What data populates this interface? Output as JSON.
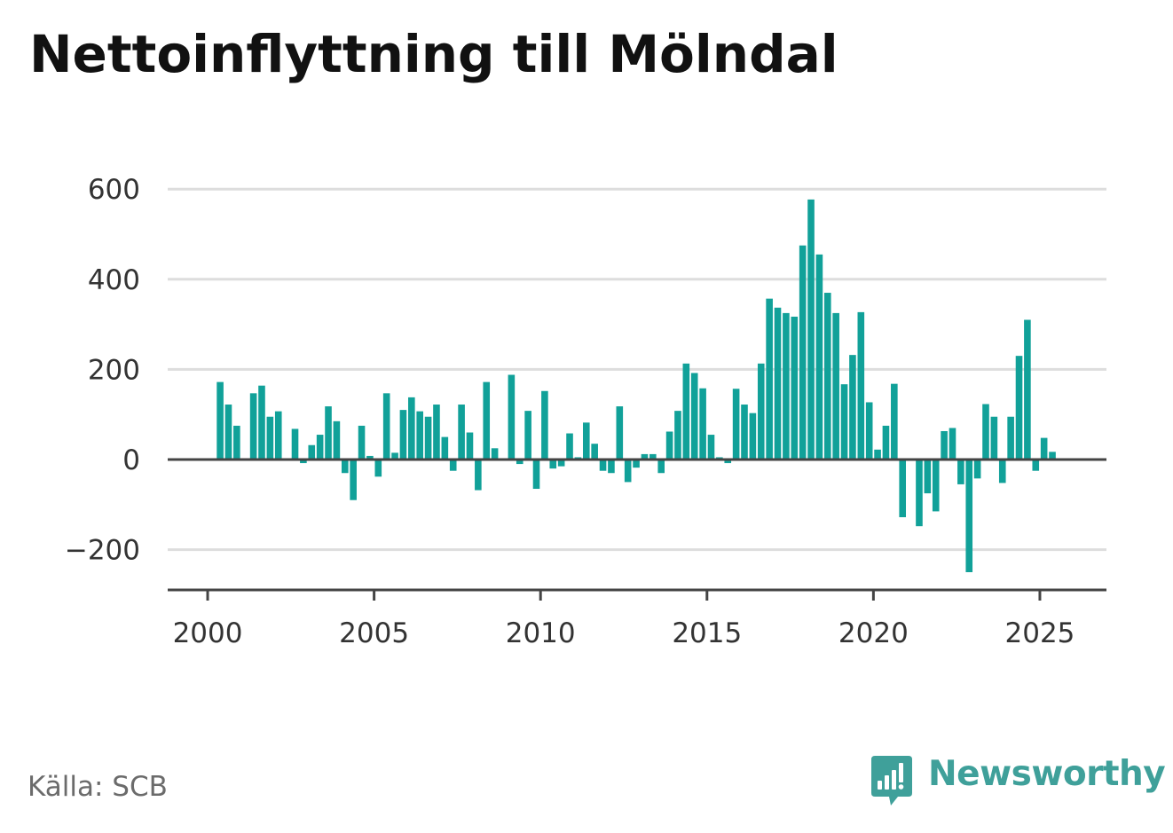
{
  "title": "Nettoinflyttning till Mölndal",
  "source": "Källa: SCB",
  "brand": {
    "name": "Newsworthy",
    "icon": "newsworthy-logo-icon",
    "color": "#3fa09a"
  },
  "chart_data": {
    "type": "bar",
    "bar_color": "#11a199",
    "axis_color": "#444444",
    "grid_color": "#dddddd",
    "grid": true,
    "ylim": [
      -290,
      600
    ],
    "xlim": [
      1998.8,
      2027
    ],
    "y_ticks": [
      {
        "value": 600,
        "label": "600"
      },
      {
        "value": 400,
        "label": "400"
      },
      {
        "value": 200,
        "label": "200"
      },
      {
        "value": 0,
        "label": "0"
      },
      {
        "value": -200,
        "label": "−200"
      }
    ],
    "x_ticks": [
      {
        "value": 2000,
        "label": "2000"
      },
      {
        "value": 2005,
        "label": "2005"
      },
      {
        "value": 2010,
        "label": "2010"
      },
      {
        "value": 2015,
        "label": "2015"
      },
      {
        "value": 2020,
        "label": "2020"
      },
      {
        "value": 2025,
        "label": "2025"
      }
    ],
    "series": [
      {
        "x": [
          "2000Q2",
          "2000Q3",
          "2000Q4",
          "2001Q1",
          "2001Q2",
          "2001Q3",
          "2001Q4",
          "2002Q1",
          "2002Q2",
          "2002Q3",
          "2002Q4",
          "2003Q1",
          "2003Q2",
          "2003Q3",
          "2003Q4",
          "2004Q1",
          "2004Q2",
          "2004Q3",
          "2004Q4",
          "2005Q1",
          "2005Q2",
          "2005Q3",
          "2005Q4",
          "2006Q1",
          "2006Q2",
          "2006Q3",
          "2006Q4",
          "2007Q1",
          "2007Q2",
          "2007Q3",
          "2007Q4",
          "2008Q1",
          "2008Q2",
          "2008Q3",
          "2008Q4",
          "2009Q1",
          "2009Q2",
          "2009Q3",
          "2009Q4",
          "2010Q1",
          "2010Q2",
          "2010Q3",
          "2010Q4",
          "2011Q1",
          "2011Q2",
          "2011Q3",
          "2011Q4",
          "2012Q1",
          "2012Q2",
          "2012Q3",
          "2012Q4",
          "2013Q1",
          "2013Q2",
          "2013Q3",
          "2013Q4",
          "2014Q1",
          "2014Q2",
          "2014Q3",
          "2014Q4",
          "2015Q1",
          "2015Q2",
          "2015Q3",
          "2015Q4",
          "2016Q1",
          "2016Q2",
          "2016Q3",
          "2016Q4",
          "2017Q1",
          "2017Q2",
          "2017Q3",
          "2017Q4",
          "2018Q1",
          "2018Q2",
          "2018Q3",
          "2018Q4",
          "2019Q1",
          "2019Q2",
          "2019Q3",
          "2019Q4",
          "2020Q1",
          "2020Q2",
          "2020Q3",
          "2020Q4",
          "2021Q1",
          "2021Q2",
          "2021Q3",
          "2021Q4",
          "2022Q1",
          "2022Q2",
          "2022Q3",
          "2022Q4",
          "2023Q1",
          "2023Q2",
          "2023Q3",
          "2023Q4",
          "2024Q1",
          "2024Q2",
          "2024Q3",
          "2024Q4",
          "2025Q1",
          "2025Q2"
        ],
        "values": [
          172,
          122,
          75,
          0,
          147,
          164,
          95,
          107,
          0,
          68,
          -8,
          32,
          55,
          118,
          85,
          -30,
          -90,
          75,
          8,
          -38,
          147,
          15,
          110,
          138,
          107,
          95,
          122,
          50,
          -25,
          122,
          60,
          -68,
          172,
          25,
          0,
          188,
          -10,
          108,
          -65,
          152,
          -20,
          -15,
          58,
          5,
          82,
          35,
          -25,
          -30,
          118,
          -50,
          -18,
          12,
          12,
          -30,
          62,
          108,
          213,
          192,
          158,
          55,
          5,
          -8,
          157,
          122,
          103,
          213,
          357,
          337,
          325,
          317,
          475,
          577,
          455,
          370,
          325,
          167,
          232,
          327,
          127,
          22,
          75,
          168,
          -128,
          0,
          -148,
          -75,
          -115,
          63,
          70,
          -55,
          -250,
          -42,
          123,
          95,
          -52,
          95,
          230,
          310,
          -25,
          48,
          17
        ]
      }
    ]
  }
}
